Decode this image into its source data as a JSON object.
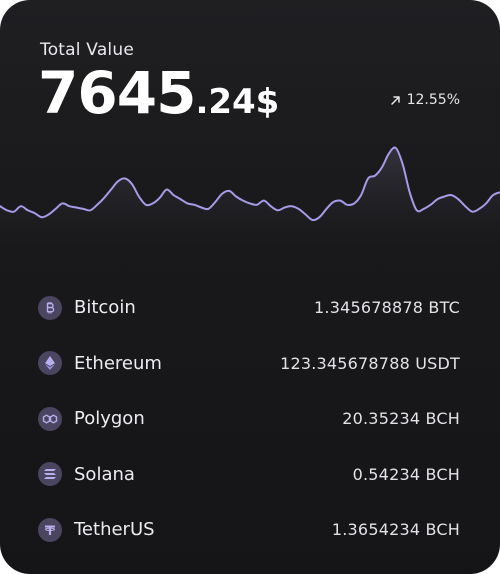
{
  "portfolio": {
    "label": "Total Value",
    "value_main": "7645",
    "value_fraction": ".24$",
    "change_text": "12.55%",
    "change_icon": "arrow-up-right-icon"
  },
  "colors": {
    "line": "#a59ce8",
    "coin_bg": "#4b4560",
    "coin_fg": "#b8b0ec"
  },
  "chart_data": {
    "type": "line",
    "values": [
      50,
      47,
      46,
      50,
      47,
      45,
      42,
      44,
      48,
      52,
      50,
      49,
      48,
      47,
      51,
      56,
      62,
      68,
      70,
      66,
      57,
      51,
      52,
      56,
      62,
      58,
      55,
      52,
      51,
      49,
      48,
      53,
      59,
      61,
      57,
      54,
      52,
      51,
      54,
      50,
      47,
      49,
      50,
      48,
      44,
      40,
      42,
      48,
      53,
      54,
      51,
      52,
      58,
      70,
      72,
      78,
      88,
      92,
      80,
      60,
      47,
      48,
      51,
      55,
      57,
      58,
      55,
      50,
      46,
      48,
      52,
      58,
      60
    ],
    "title": "",
    "xlabel": "",
    "ylabel": ""
  },
  "assets": [
    {
      "name": "Bitcoin",
      "amount": "1.345678878 BTC",
      "icon": "bitcoin-icon"
    },
    {
      "name": "Ethereum",
      "amount": "123.345678788 USDT",
      "icon": "ethereum-icon"
    },
    {
      "name": "Polygon",
      "amount": "20.35234 BCH",
      "icon": "polygon-icon"
    },
    {
      "name": "Solana",
      "amount": "0.54234 BCH",
      "icon": "solana-icon"
    },
    {
      "name": "TetherUS",
      "amount": "1.3654234 BCH",
      "icon": "tether-icon"
    }
  ]
}
